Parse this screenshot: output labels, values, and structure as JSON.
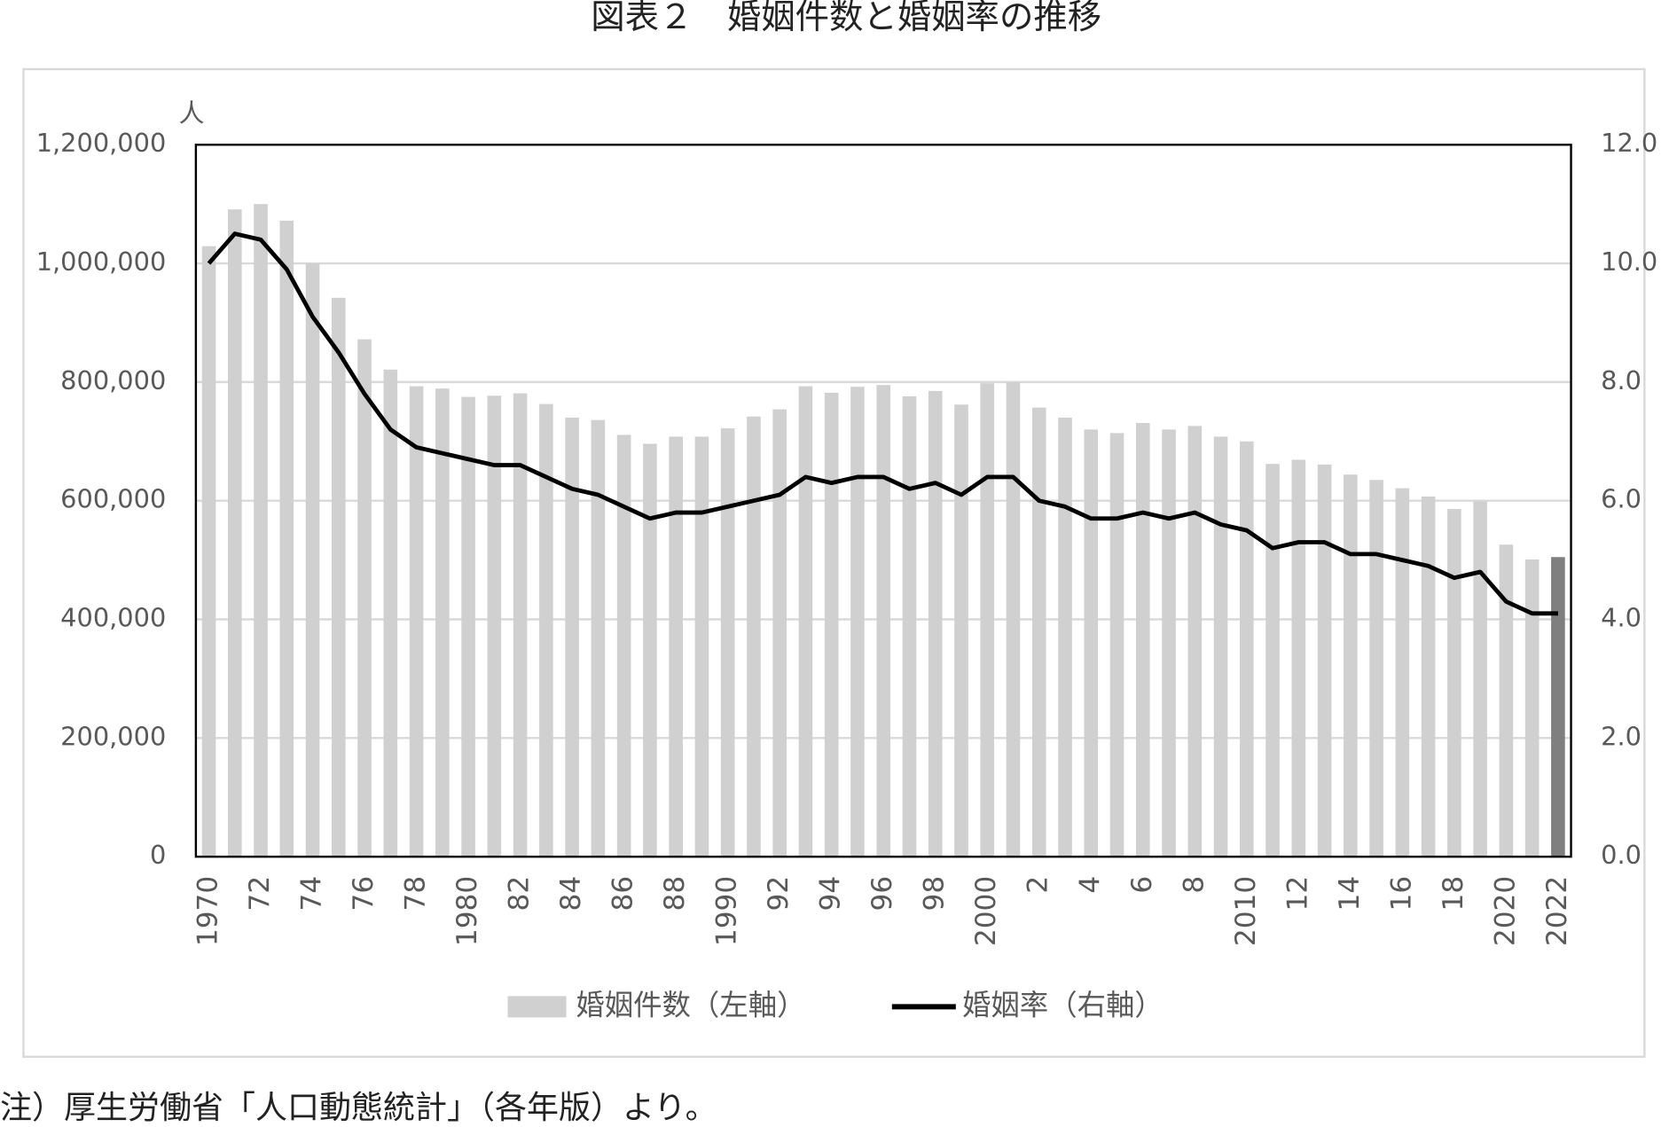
{
  "chart_data": {
    "type": "bar-line",
    "title": "図表２　婚姻件数と婚姻率の推移",
    "y_unit": "人",
    "categories": [
      "1970",
      null,
      "72",
      null,
      "74",
      null,
      "76",
      null,
      "78",
      null,
      "1980",
      null,
      "82",
      null,
      "84",
      null,
      "86",
      null,
      "88",
      null,
      "1990",
      null,
      "92",
      null,
      "94",
      null,
      "96",
      null,
      "98",
      null,
      "2000",
      null,
      "2",
      null,
      "4",
      null,
      "6",
      null,
      "8",
      null,
      "2010",
      null,
      "12",
      null,
      "14",
      null,
      "16",
      null,
      "18",
      null,
      "2020",
      null,
      "2022"
    ],
    "series": [
      {
        "name": "婚姻件数（左軸）",
        "type": "bar",
        "color": "#d0d0d0",
        "axis": "y",
        "colors": [
          "#d0d0d0",
          "#d0d0d0",
          "#d0d0d0",
          "#d0d0d0",
          "#d0d0d0",
          "#d0d0d0",
          "#d0d0d0",
          "#d0d0d0",
          "#d0d0d0",
          "#d0d0d0",
          "#d0d0d0",
          "#d0d0d0",
          "#d0d0d0",
          "#d0d0d0",
          "#d0d0d0",
          "#d0d0d0",
          "#d0d0d0",
          "#d0d0d0",
          "#d0d0d0",
          "#d0d0d0",
          "#d0d0d0",
          "#d0d0d0",
          "#d0d0d0",
          "#d0d0d0",
          "#d0d0d0",
          "#d0d0d0",
          "#d0d0d0",
          "#d0d0d0",
          "#d0d0d0",
          "#d0d0d0",
          "#d0d0d0",
          "#d0d0d0",
          "#d0d0d0",
          "#d0d0d0",
          "#d0d0d0",
          "#d0d0d0",
          "#d0d0d0",
          "#d0d0d0",
          "#d0d0d0",
          "#d0d0d0",
          "#d0d0d0",
          "#d0d0d0",
          "#d0d0d0",
          "#d0d0d0",
          "#d0d0d0",
          "#d0d0d0",
          "#d0d0d0",
          "#d0d0d0",
          "#d0d0d0",
          "#d0d0d0",
          "#d0d0d0",
          "#d0d0d0",
          "#7f7f7f"
        ],
        "values": [
          1029000,
          1091000,
          1100000,
          1072000,
          1000000,
          942000,
          872000,
          821000,
          793000,
          789000,
          775000,
          777000,
          781000,
          763000,
          740000,
          736000,
          711000,
          696000,
          708000,
          708000,
          722000,
          742000,
          754000,
          793000,
          782000,
          792000,
          795000,
          776000,
          785000,
          762000,
          798000,
          800000,
          757000,
          740000,
          720000,
          714000,
          731000,
          720000,
          726000,
          708000,
          700000,
          662000,
          669000,
          661000,
          644000,
          635000,
          621000,
          607000,
          586000,
          599000,
          526000,
          501000,
          505000
        ]
      },
      {
        "name": "婚姻率（右軸）",
        "type": "line",
        "color": "#000000",
        "axis": "y2",
        "values": [
          10.0,
          10.5,
          10.4,
          9.9,
          9.1,
          8.5,
          7.8,
          7.2,
          6.9,
          6.8,
          6.7,
          6.6,
          6.6,
          6.4,
          6.2,
          6.1,
          5.9,
          5.7,
          5.8,
          5.8,
          5.9,
          6.0,
          6.1,
          6.4,
          6.3,
          6.4,
          6.4,
          6.2,
          6.3,
          6.1,
          6.4,
          6.4,
          6.0,
          5.9,
          5.7,
          5.7,
          5.8,
          5.7,
          5.8,
          5.6,
          5.5,
          5.2,
          5.3,
          5.3,
          5.1,
          5.1,
          5.0,
          4.9,
          4.7,
          4.8,
          4.3,
          4.1,
          4.1
        ]
      }
    ],
    "ylim": [
      0,
      1200000
    ],
    "yticks": [
      0,
      {
        "value": 200000,
        "label": "200,000"
      },
      {
        "value": 400000,
        "label": "400,000"
      },
      {
        "value": 600000,
        "label": "600,000"
      },
      {
        "value": 800000,
        "label": "800,000"
      },
      {
        "value": 1000000,
        "label": "1,000,000"
      },
      {
        "value": 1200000,
        "label": "1,200,000"
      }
    ],
    "y2lim": [
      0,
      12
    ],
    "y2ticks": [
      {
        "value": 0,
        "label": "0.0"
      },
      {
        "value": 2,
        "label": "2.0"
      },
      {
        "value": 4,
        "label": "4.0"
      },
      {
        "value": 6,
        "label": "6.0"
      },
      {
        "value": 8,
        "label": "8.0"
      },
      {
        "value": 10,
        "label": "10.0"
      },
      {
        "value": 12,
        "label": "12.0"
      }
    ],
    "grid": true,
    "legend": "bottom",
    "note": "注）厚生労働省「人口動態統計」（各年版）より。"
  }
}
